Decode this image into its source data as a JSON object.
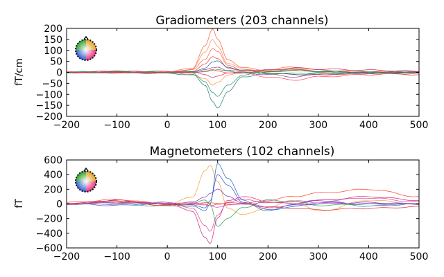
{
  "chart_data": [
    {
      "type": "line",
      "title": "Gradiometers (203 channels)",
      "xlabel": "",
      "ylabel": "fT/cm",
      "xlim": [
        -200,
        500
      ],
      "ylim": [
        -200,
        200
      ],
      "x_ticks": [
        -200,
        -100,
        0,
        100,
        200,
        300,
        400,
        500
      ],
      "y_ticks": [
        -200,
        -150,
        -100,
        -50,
        0,
        50,
        100,
        150,
        200
      ],
      "x_tick_labels": [
        "−200",
        "−100",
        "0",
        "100",
        "200",
        "300",
        "400",
        "500"
      ],
      "y_tick_labels": [
        "−200",
        "−150",
        "−100",
        "−50",
        "0",
        "50",
        "100",
        "150",
        "200"
      ],
      "grid": false,
      "channel_count": 203,
      "series": [
        {
          "color": "#ff5a3a",
          "x": [
            -200,
            -100,
            0,
            50,
            75,
            90,
            100,
            120,
            150,
            200,
            250,
            300,
            400,
            500
          ],
          "values": [
            0,
            2,
            0,
            20,
            120,
            195,
            150,
            60,
            20,
            10,
            25,
            10,
            5,
            0
          ]
        },
        {
          "color": "#ff8c5a",
          "x": [
            -200,
            -100,
            0,
            50,
            75,
            90,
            100,
            120,
            150,
            200,
            250,
            300,
            400,
            500
          ],
          "values": [
            0,
            -2,
            0,
            15,
            90,
            150,
            120,
            40,
            15,
            10,
            15,
            5,
            0,
            0
          ]
        },
        {
          "color": "#ff6040",
          "x": [
            -200,
            -100,
            0,
            50,
            75,
            90,
            100,
            120,
            150,
            200,
            250,
            300,
            400,
            500
          ],
          "values": [
            0,
            3,
            5,
            10,
            60,
            110,
            95,
            30,
            10,
            5,
            10,
            5,
            0,
            5
          ]
        },
        {
          "color": "#e04020",
          "x": [
            -200,
            -100,
            0,
            50,
            75,
            90,
            100,
            120,
            150,
            200,
            250,
            300,
            400,
            500
          ],
          "values": [
            0,
            0,
            0,
            5,
            40,
            70,
            60,
            20,
            10,
            0,
            -10,
            -10,
            -5,
            -10
          ]
        },
        {
          "color": "#ff9040",
          "x": [
            -200,
            -100,
            0,
            50,
            75,
            90,
            100,
            120,
            150,
            200,
            250,
            300,
            400,
            500
          ],
          "values": [
            0,
            0,
            0,
            -10,
            -30,
            -60,
            -45,
            -10,
            0,
            5,
            10,
            0,
            0,
            0
          ]
        },
        {
          "color": "#1a7a7a",
          "x": [
            -200,
            -100,
            0,
            50,
            75,
            90,
            100,
            120,
            150,
            200,
            250,
            300,
            400,
            500
          ],
          "values": [
            0,
            0,
            -5,
            -10,
            -60,
            -130,
            -160,
            -90,
            -20,
            0,
            10,
            5,
            0,
            0
          ]
        },
        {
          "color": "#2a8a70",
          "x": [
            -200,
            -100,
            0,
            50,
            75,
            90,
            100,
            120,
            150,
            200,
            250,
            300,
            400,
            500
          ],
          "values": [
            0,
            0,
            0,
            -5,
            -40,
            -90,
            -110,
            -60,
            -10,
            5,
            15,
            5,
            0,
            0
          ]
        },
        {
          "color": "#1060a0",
          "x": [
            -200,
            -100,
            0,
            50,
            75,
            90,
            100,
            120,
            150,
            200,
            250,
            300,
            400,
            500
          ],
          "values": [
            0,
            0,
            0,
            5,
            20,
            45,
            50,
            25,
            10,
            -5,
            -10,
            -5,
            0,
            0
          ]
        },
        {
          "color": "#8a3aa0",
          "x": [
            -200,
            -100,
            0,
            50,
            75,
            90,
            100,
            120,
            150,
            200,
            250,
            300,
            400,
            500
          ],
          "values": [
            0,
            5,
            0,
            0,
            10,
            20,
            25,
            10,
            0,
            -10,
            -20,
            -10,
            -5,
            0
          ]
        },
        {
          "color": "#d02060",
          "x": [
            -200,
            -100,
            0,
            50,
            75,
            90,
            100,
            120,
            150,
            200,
            250,
            300,
            400,
            500
          ],
          "values": [
            0,
            0,
            0,
            0,
            -10,
            -20,
            -15,
            -5,
            0,
            10,
            20,
            15,
            10,
            5
          ]
        },
        {
          "color": "#20a040",
          "x": [
            -200,
            -100,
            0,
            50,
            75,
            90,
            100,
            120,
            150,
            200,
            250,
            300,
            400,
            500
          ],
          "values": [
            0,
            5,
            0,
            0,
            5,
            10,
            10,
            5,
            0,
            -5,
            -5,
            0,
            0,
            0
          ]
        },
        {
          "color": "#ff4040",
          "x": [
            -200,
            -100,
            0,
            50,
            75,
            90,
            100,
            120,
            150,
            200,
            250,
            300,
            400,
            500
          ],
          "values": [
            0,
            0,
            0,
            0,
            5,
            10,
            5,
            0,
            -5,
            -20,
            -35,
            -20,
            -10,
            -5
          ]
        }
      ]
    },
    {
      "type": "line",
      "title": "Magnetometers (102 channels)",
      "xlabel": "",
      "ylabel": "fT",
      "xlim": [
        -200,
        500
      ],
      "ylim": [
        -600,
        600
      ],
      "x_ticks": [
        -200,
        -100,
        0,
        100,
        200,
        300,
        400,
        500
      ],
      "y_ticks": [
        -600,
        -400,
        -200,
        0,
        200,
        400,
        600
      ],
      "x_tick_labels": [
        "−200",
        "−100",
        "0",
        "100",
        "200",
        "300",
        "400",
        "500"
      ],
      "y_tick_labels": [
        "−600",
        "−400",
        "−200",
        "0",
        "200",
        "400",
        "600"
      ],
      "grid": false,
      "channel_count": 102,
      "series": [
        {
          "color": "#f0a030",
          "x": [
            -200,
            -100,
            0,
            50,
            75,
            85,
            100,
            120,
            150,
            200,
            250,
            300,
            400,
            500
          ],
          "values": [
            0,
            30,
            -20,
            100,
            450,
            520,
            300,
            -50,
            -150,
            -50,
            50,
            -100,
            50,
            0
          ]
        },
        {
          "color": "#2060c0",
          "x": [
            -200,
            -100,
            0,
            50,
            75,
            85,
            100,
            120,
            150,
            200,
            250,
            300,
            400,
            500
          ],
          "values": [
            0,
            20,
            0,
            -30,
            -100,
            0,
            560,
            350,
            50,
            -100,
            0,
            50,
            -30,
            0
          ]
        },
        {
          "color": "#3050d0",
          "x": [
            -200,
            -100,
            0,
            50,
            75,
            85,
            100,
            120,
            150,
            200,
            250,
            300,
            400,
            500
          ],
          "values": [
            0,
            -20,
            10,
            -20,
            -50,
            50,
            400,
            250,
            30,
            -80,
            -40,
            20,
            0,
            0
          ]
        },
        {
          "color": "#d02080",
          "x": [
            -200,
            -100,
            0,
            50,
            75,
            85,
            100,
            120,
            150,
            200,
            250,
            300,
            400,
            500
          ],
          "values": [
            0,
            40,
            0,
            -100,
            -450,
            -540,
            -200,
            50,
            100,
            30,
            0,
            50,
            100,
            50
          ]
        },
        {
          "color": "#e04090",
          "x": [
            -200,
            -100,
            0,
            50,
            75,
            85,
            100,
            120,
            150,
            200,
            250,
            300,
            400,
            500
          ],
          "values": [
            0,
            20,
            10,
            -50,
            -300,
            -380,
            -150,
            30,
            60,
            20,
            10,
            40,
            80,
            30
          ]
        },
        {
          "color": "#20a050",
          "x": [
            -200,
            -100,
            0,
            50,
            75,
            85,
            100,
            120,
            150,
            200,
            250,
            300,
            400,
            500
          ],
          "values": [
            0,
            0,
            -30,
            0,
            50,
            0,
            -300,
            -200,
            -50,
            50,
            30,
            -20,
            0,
            0
          ]
        },
        {
          "color": "#8030c0",
          "x": [
            -200,
            -100,
            0,
            50,
            75,
            85,
            100,
            120,
            150,
            200,
            250,
            300,
            400,
            500
          ],
          "values": [
            0,
            50,
            -10,
            20,
            100,
            150,
            200,
            100,
            20,
            -50,
            -20,
            0,
            20,
            0
          ]
        },
        {
          "color": "#ff4020",
          "x": [
            -200,
            -100,
            0,
            50,
            75,
            85,
            100,
            120,
            150,
            200,
            250,
            300,
            400,
            500
          ],
          "values": [
            20,
            60,
            0,
            10,
            20,
            10,
            0,
            0,
            0,
            50,
            100,
            150,
            200,
            100
          ]
        },
        {
          "color": "#e03030",
          "x": [
            -200,
            -100,
            0,
            50,
            75,
            85,
            100,
            120,
            150,
            200,
            250,
            300,
            400,
            500
          ],
          "values": [
            0,
            40,
            -20,
            0,
            -20,
            -30,
            0,
            20,
            0,
            -40,
            -60,
            -80,
            -60,
            -40
          ]
        },
        {
          "color": "#c050c0",
          "x": [
            -200,
            -100,
            0,
            50,
            75,
            85,
            100,
            120,
            150,
            200,
            250,
            300,
            400,
            500
          ],
          "values": [
            0,
            0,
            20,
            10,
            0,
            -20,
            -40,
            -20,
            0,
            20,
            40,
            20,
            0,
            0
          ]
        }
      ]
    }
  ]
}
